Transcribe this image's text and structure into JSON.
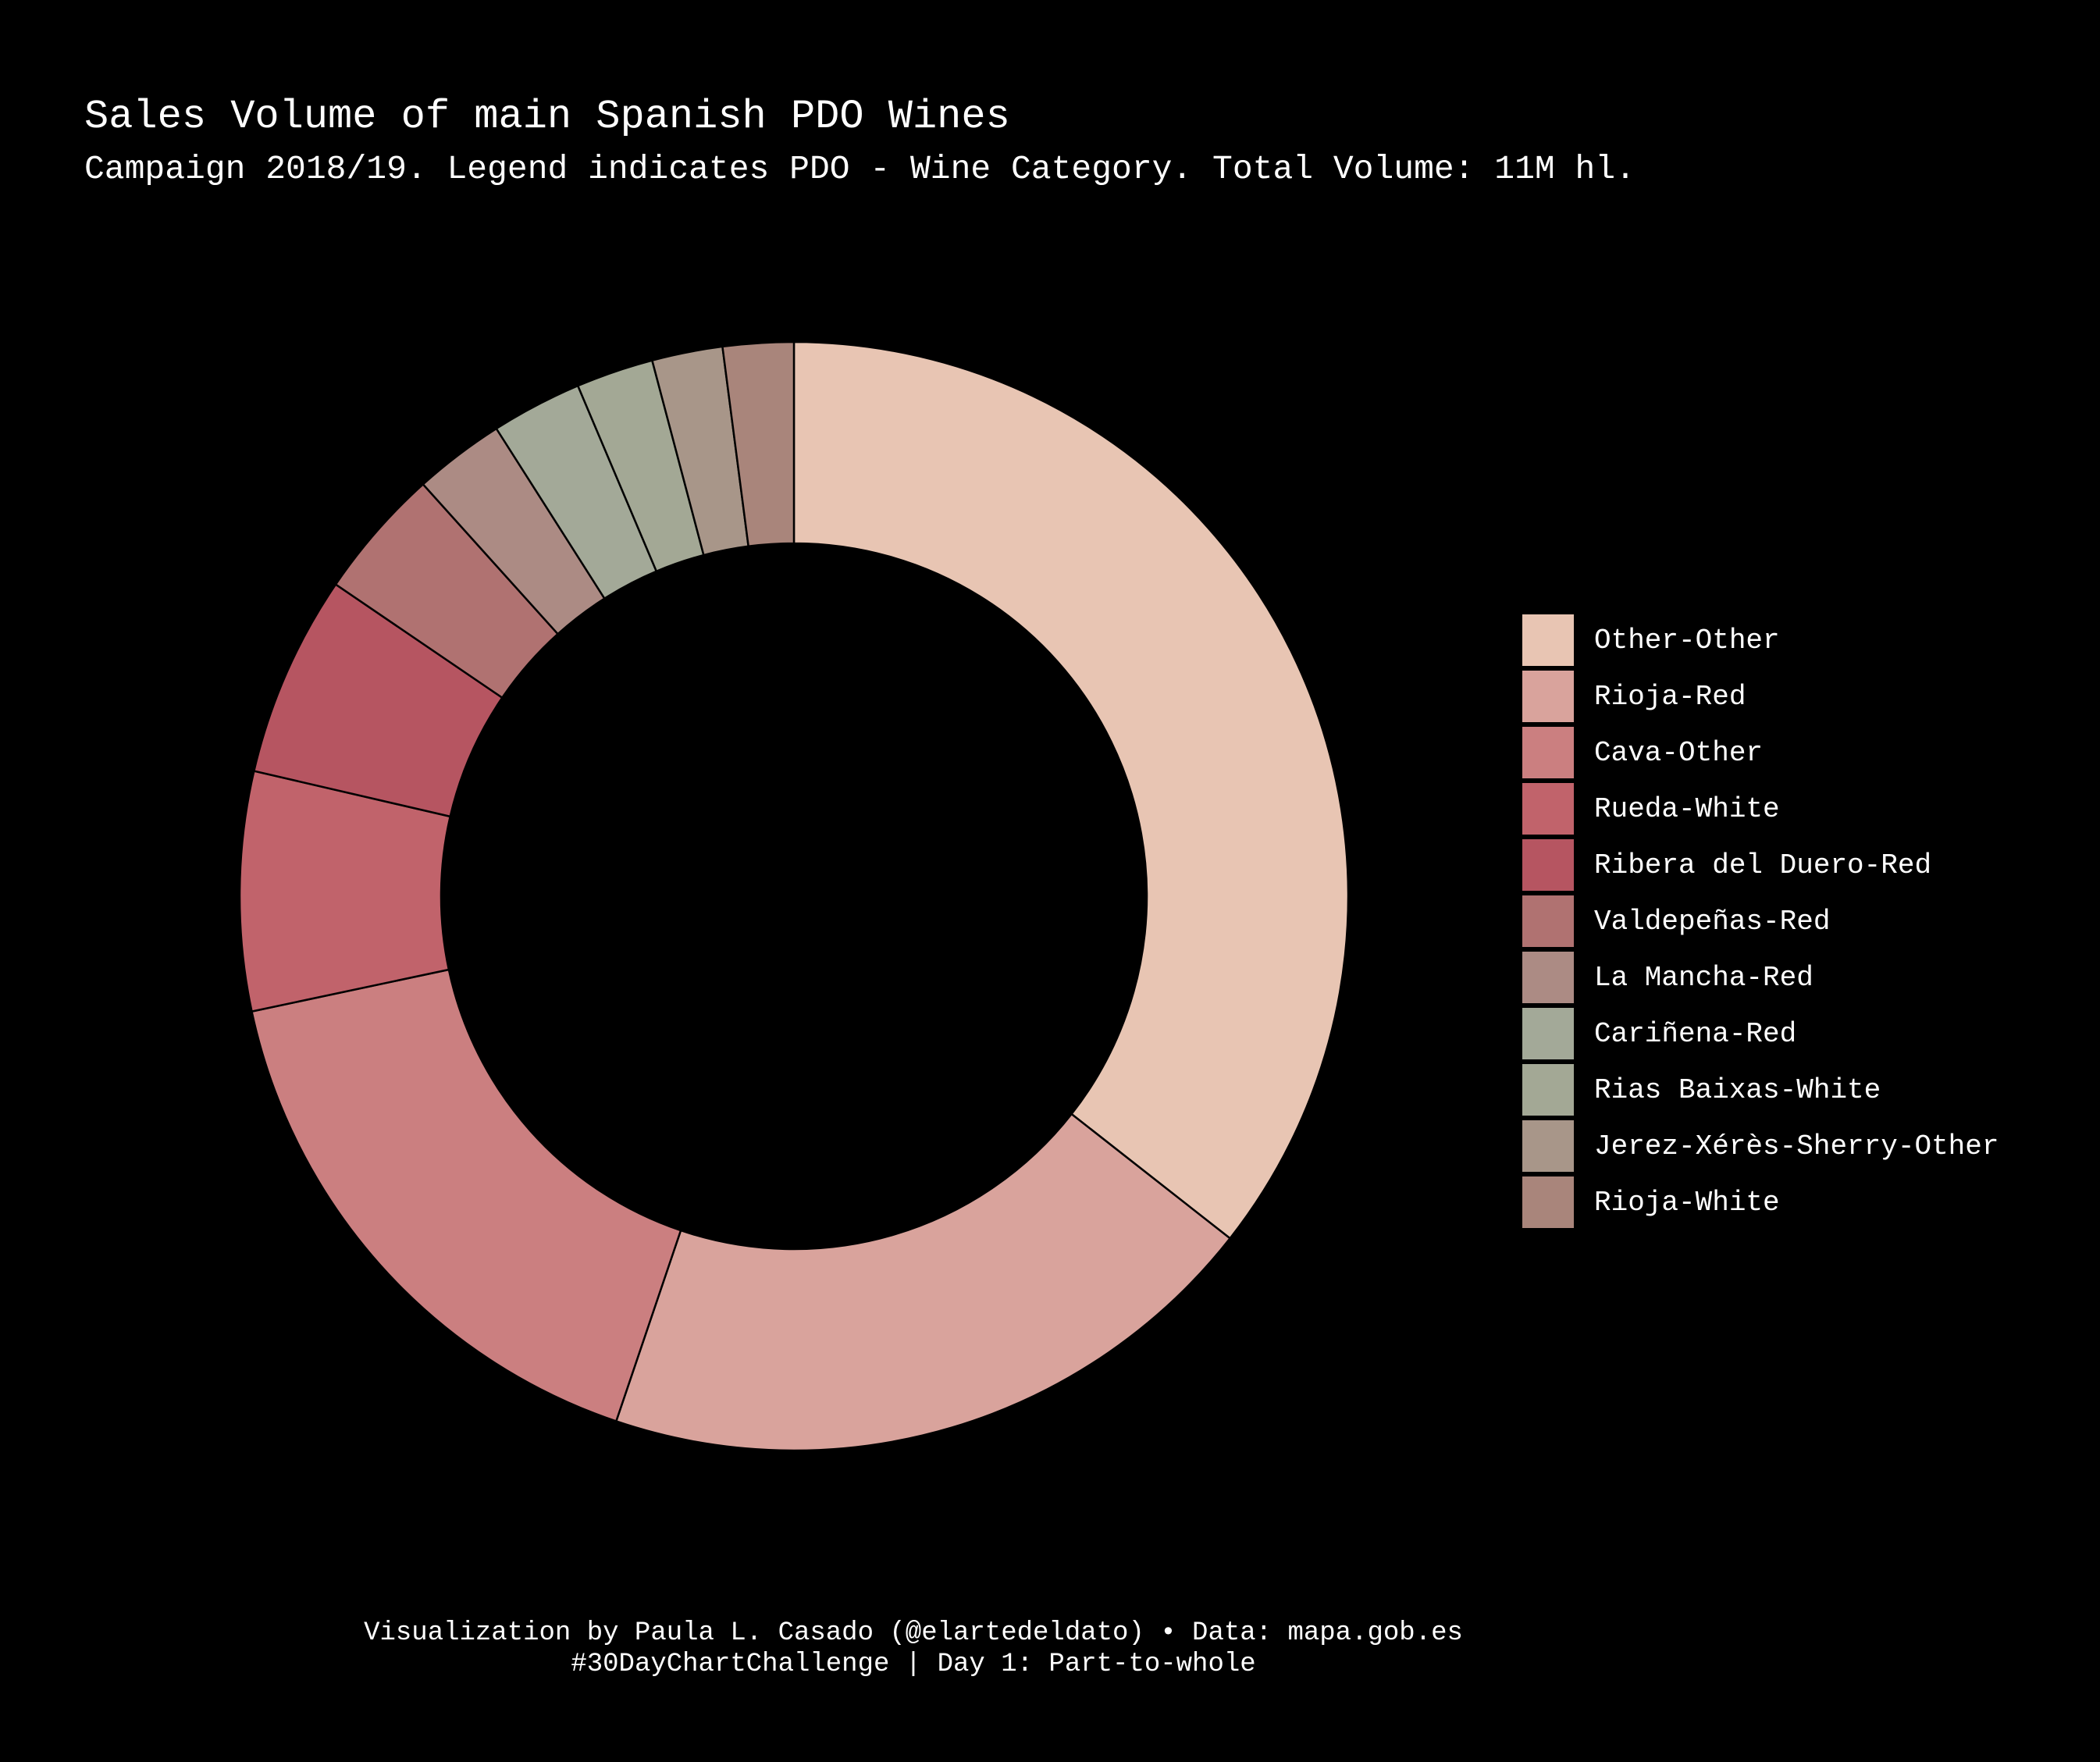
{
  "chart_data": {
    "type": "pie",
    "style": "donut",
    "title": "Sales Volume of main Spanish PDO Wines",
    "subtitle": "Campaign 2018/19. Legend indicates PDO - Wine Category. Total Volume: 11M hl.",
    "legend_position": "right",
    "categories": [
      "Other-Other",
      "Rioja-Red",
      "Cava-Other",
      "Rueda-White",
      "Ribera del Duero-Red",
      "Valdepeñas-Red",
      "La Mancha-Red",
      "Cariñena-Red",
      "Rias Baixas-White",
      "Jerez-Xérès-Sherry-Other",
      "Rioja-White"
    ],
    "values": [
      36.3,
      20.0,
      16.8,
      7.1,
      6.0,
      3.9,
      2.7,
      2.7,
      2.3,
      2.1,
      2.1
    ],
    "colors": [
      "#e8c5b3",
      "#d9a39c",
      "#cb7f80",
      "#c1636b",
      "#b65561",
      "#b07271",
      "#ac8b84",
      "#a3a998",
      "#a3a895",
      "#a89689",
      "#a9857b"
    ]
  },
  "caption": {
    "line1": "Visualization by Paula L. Casado (@elartedeldato) •  Data: mapa.gob.es",
    "line2": "#30DayChartChallenge | Day 1: Part-to-whole"
  }
}
